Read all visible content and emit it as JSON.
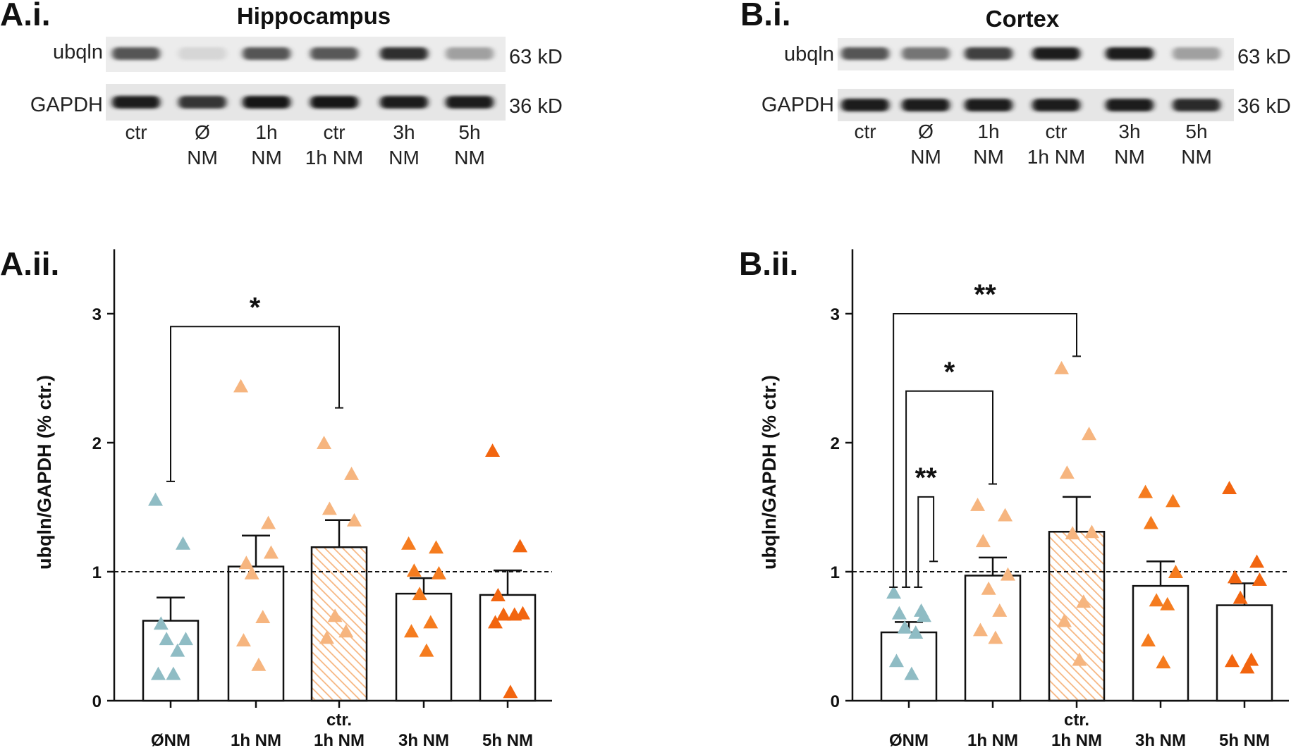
{
  "colors": {
    "ctrl_teal": "#8fbcc4",
    "nm1h_peach": "#f6b57f",
    "nm3h_orange": "#f57c1f",
    "nm5h_orange": "#f2650f",
    "hatch": "#f6b57f",
    "ink": "#111111"
  },
  "blots": [
    {
      "panel_label": "A.i.",
      "title": "Hippocampus",
      "bands": [
        {
          "name": "ubqln",
          "kd": "63 kD",
          "intensities": [
            0.7,
            0.1,
            0.7,
            0.68,
            0.88,
            0.35
          ]
        },
        {
          "name": "GAPDH",
          "kd": "36 kD",
          "intensities": [
            0.95,
            0.85,
            0.98,
            0.98,
            0.95,
            0.95
          ]
        }
      ],
      "lanes": [
        {
          "line1": "ctr",
          "line2": ""
        },
        {
          "line1": "Ø",
          "line2": "NM"
        },
        {
          "line1": "1h",
          "line2": "NM"
        },
        {
          "line1": "ctr",
          "line2": "1h NM"
        },
        {
          "line1": "3h",
          "line2": "NM"
        },
        {
          "line1": "5h",
          "line2": "NM"
        }
      ]
    },
    {
      "panel_label": "B.i.",
      "title": "Cortex",
      "bands": [
        {
          "name": "ubqln",
          "kd": "63 kD",
          "intensities": [
            0.7,
            0.55,
            0.8,
            0.95,
            0.95,
            0.35
          ]
        },
        {
          "name": "GAPDH",
          "kd": "36 kD",
          "intensities": [
            0.95,
            0.95,
            0.95,
            0.95,
            0.95,
            0.9
          ]
        }
      ],
      "lanes": [
        {
          "line1": "ctr",
          "line2": ""
        },
        {
          "line1": "Ø",
          "line2": "NM"
        },
        {
          "line1": "1h",
          "line2": "NM"
        },
        {
          "line1": "ctr",
          "line2": "1h NM"
        },
        {
          "line1": "3h",
          "line2": "NM"
        },
        {
          "line1": "5h",
          "line2": "NM"
        }
      ]
    }
  ],
  "chart_data": [
    {
      "panel_label": "A.ii.",
      "type": "bar",
      "ylabel": "ubqln/GAPDH (% ctr.)",
      "ylim": [
        0,
        3.5
      ],
      "yticks": [
        0,
        1,
        2,
        3
      ],
      "reference_line": 1,
      "categories": [
        {
          "line1": "",
          "line2": "ØNM"
        },
        {
          "line1": "",
          "line2": "1h NM"
        },
        {
          "line1": "ctr.",
          "line2": "1h NM"
        },
        {
          "line1": "",
          "line2": "3h NM"
        },
        {
          "line1": "",
          "line2": "5h NM"
        }
      ],
      "means": [
        0.62,
        1.04,
        1.19,
        0.83,
        0.82
      ],
      "sem": [
        0.18,
        0.24,
        0.21,
        0.12,
        0.19
      ],
      "hatched": [
        false,
        false,
        true,
        false,
        false
      ],
      "point_colors": [
        "#8fbcc4",
        "#f6b57f",
        "#f6b57f",
        "#f57c1f",
        "#f2650f"
      ],
      "points": [
        [
          1.55,
          1.21,
          0.59,
          0.47,
          0.47,
          0.38,
          0.2,
          0.2
        ],
        [
          2.43,
          1.37,
          1.06,
          1.14,
          0.98,
          0.64,
          0.46,
          0.27
        ],
        [
          1.99,
          1.75,
          1.48,
          1.39,
          0.65,
          0.53,
          0.48
        ],
        [
          1.21,
          1.18,
          1.0,
          0.98,
          0.82,
          0.6,
          0.53,
          0.38
        ],
        [
          1.93,
          1.19,
          0.81,
          0.67,
          0.66,
          0.66,
          0.6,
          0.06
        ]
      ],
      "comparisons": [
        {
          "from": 0,
          "to": 2,
          "label": "*",
          "bracket_y": 2.9,
          "left_drop": 1.7,
          "right_drop": 2.27
        }
      ]
    },
    {
      "panel_label": "B.ii.",
      "type": "bar",
      "ylabel": "ubqln/GAPDH (% ctr.)",
      "ylim": [
        0,
        3.5
      ],
      "yticks": [
        0,
        1,
        2,
        3
      ],
      "reference_line": 1,
      "categories": [
        {
          "line1": "",
          "line2": "ØNM"
        },
        {
          "line1": "",
          "line2": "1h NM"
        },
        {
          "line1": "ctr.",
          "line2": "1h NM"
        },
        {
          "line1": "",
          "line2": "3h NM"
        },
        {
          "line1": "",
          "line2": "5h NM"
        }
      ],
      "means": [
        0.53,
        0.97,
        1.31,
        0.89,
        0.74
      ],
      "sem": [
        0.08,
        0.14,
        0.27,
        0.19,
        0.17
      ],
      "hatched": [
        false,
        false,
        true,
        false,
        false
      ],
      "point_colors": [
        "#8fbcc4",
        "#f6b57f",
        "#f6b57f",
        "#f57c1f",
        "#f2650f"
      ],
      "points": [
        [
          0.83,
          0.69,
          0.67,
          0.65,
          0.56,
          0.52,
          0.3,
          0.2
        ],
        [
          1.51,
          1.43,
          1.23,
          0.97,
          0.86,
          0.69,
          0.54,
          0.48
        ],
        [
          2.57,
          2.06,
          1.76,
          1.3,
          1.29,
          0.76,
          0.61,
          0.31
        ],
        [
          1.61,
          1.54,
          1.37,
          0.99,
          0.77,
          0.74,
          0.46,
          0.29
        ],
        [
          1.64,
          1.07,
          0.95,
          0.93,
          0.79,
          0.31,
          0.3,
          0.25
        ]
      ],
      "comparisons": [
        {
          "from": 0,
          "to": 2,
          "label": "**",
          "bracket_y": 3.0,
          "left_drop": 0.88,
          "right_drop": 2.67,
          "from_offset": -0.28
        },
        {
          "from": 0,
          "to": 1,
          "label": "*",
          "bracket_y": 2.4,
          "left_drop": 0.88,
          "right_drop": 1.68,
          "from_offset": -0.05
        },
        {
          "from": 0,
          "to": 0,
          "label": "**",
          "bracket_y": 1.58,
          "left_drop": 0.88,
          "right_drop": 1.08,
          "from_offset": 0.17,
          "to_offset": 0.45
        }
      ]
    }
  ]
}
